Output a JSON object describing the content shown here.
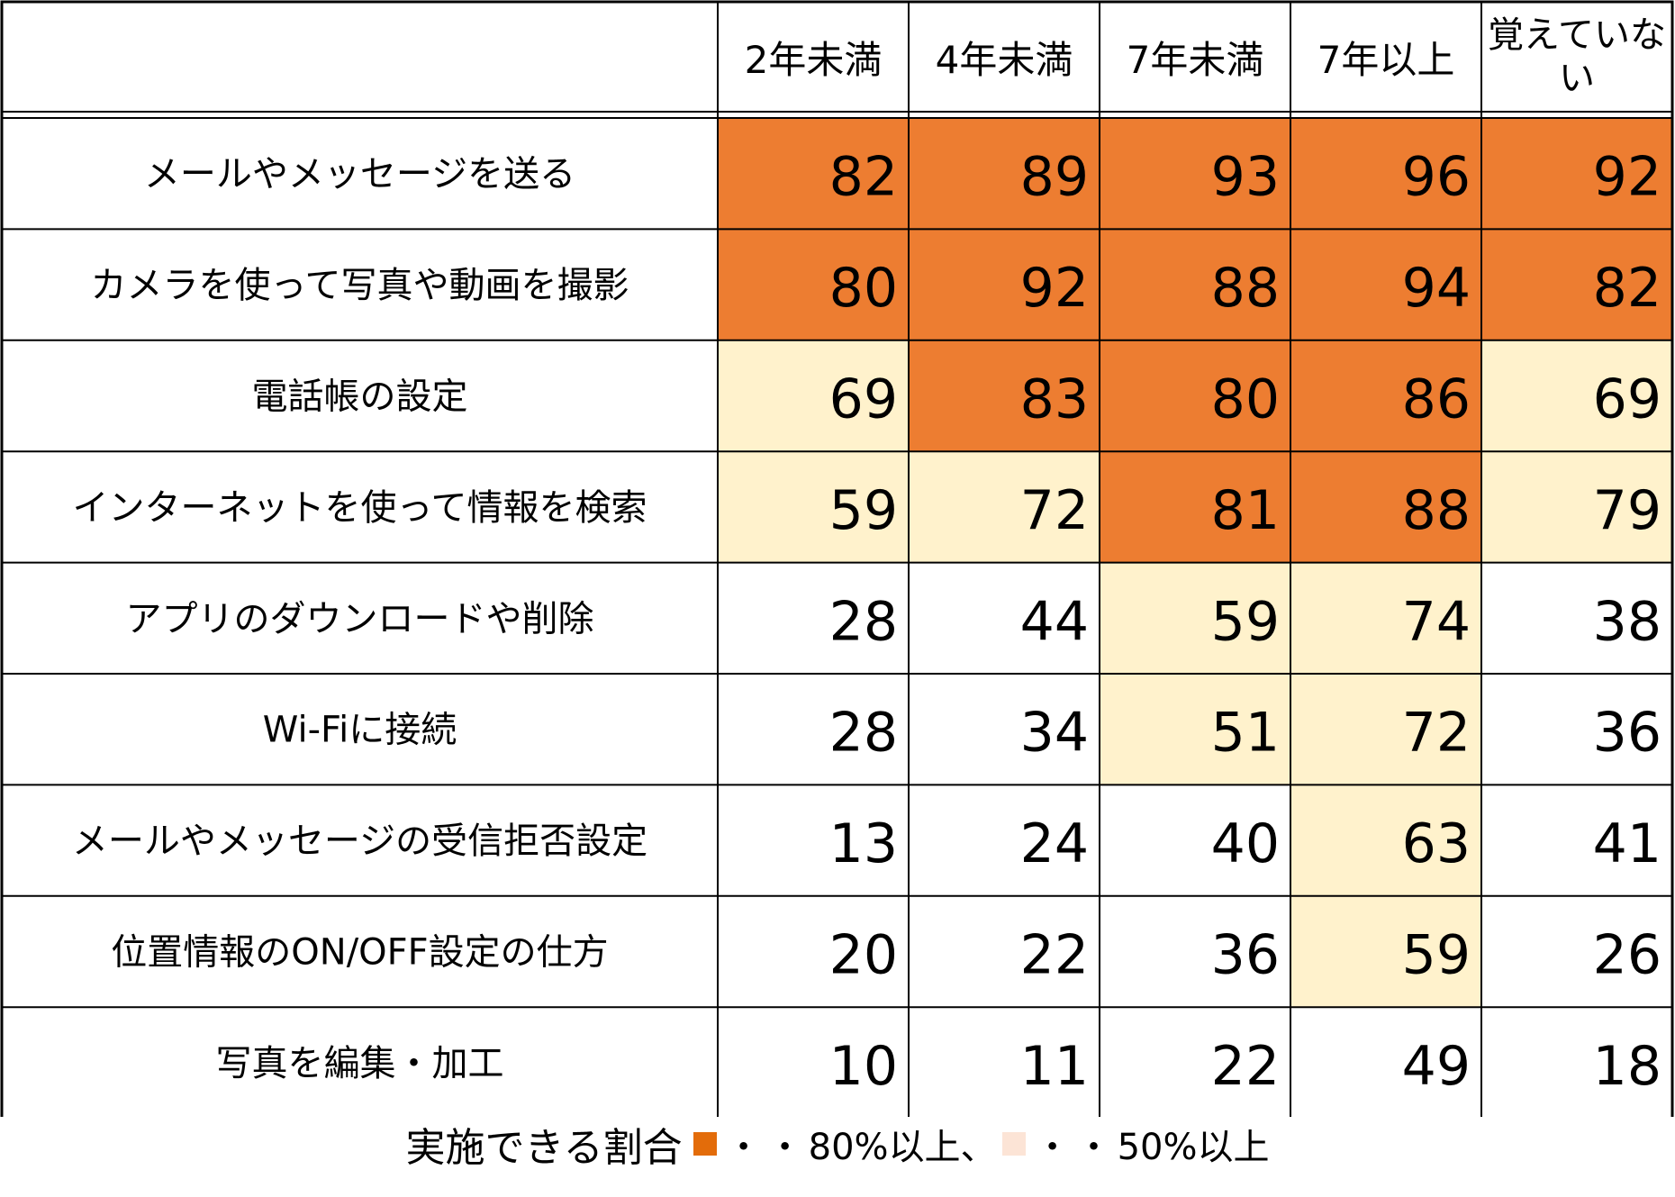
{
  "chart_data": {
    "type": "table",
    "columns": [
      "2年未満",
      "4年未満",
      "7年未満",
      "7年以上",
      "覚えていない"
    ],
    "rows": [
      {
        "label": "メールやメッセージを送る",
        "values": [
          82,
          89,
          93,
          96,
          92
        ]
      },
      {
        "label": "カメラを使って写真や動画を撮影",
        "values": [
          80,
          92,
          88,
          94,
          82
        ]
      },
      {
        "label": "電話帳の設定",
        "values": [
          69,
          83,
          80,
          86,
          69
        ]
      },
      {
        "label": "インターネットを使って情報を検索",
        "values": [
          59,
          72,
          81,
          88,
          79
        ]
      },
      {
        "label": "アプリのダウンロードや削除",
        "values": [
          28,
          44,
          59,
          74,
          38
        ]
      },
      {
        "label": "Wi-Fiに接続",
        "values": [
          28,
          34,
          51,
          72,
          36
        ]
      },
      {
        "label": "メールやメッセージの受信拒否設定",
        "values": [
          13,
          24,
          40,
          63,
          41
        ]
      },
      {
        "label": "位置情報のON/OFF設定の仕方",
        "values": [
          20,
          22,
          36,
          59,
          26
        ]
      },
      {
        "label": "写真を編集・加工",
        "values": [
          10,
          11,
          22,
          49,
          18
        ]
      }
    ],
    "thresholds": {
      "high": 80,
      "mid": 50
    },
    "colors": {
      "high": "#ED7D31",
      "mid": "#FFF2CC",
      "none": "#FFFFFF",
      "border": "#000000"
    }
  },
  "legend": {
    "title": "実施できる割合",
    "high_swatch_color": "#E36C0A",
    "high_label": "80%以上、",
    "mid_swatch_color": "#FCE4D6",
    "mid_label": "50%以上",
    "dots": "・・"
  }
}
